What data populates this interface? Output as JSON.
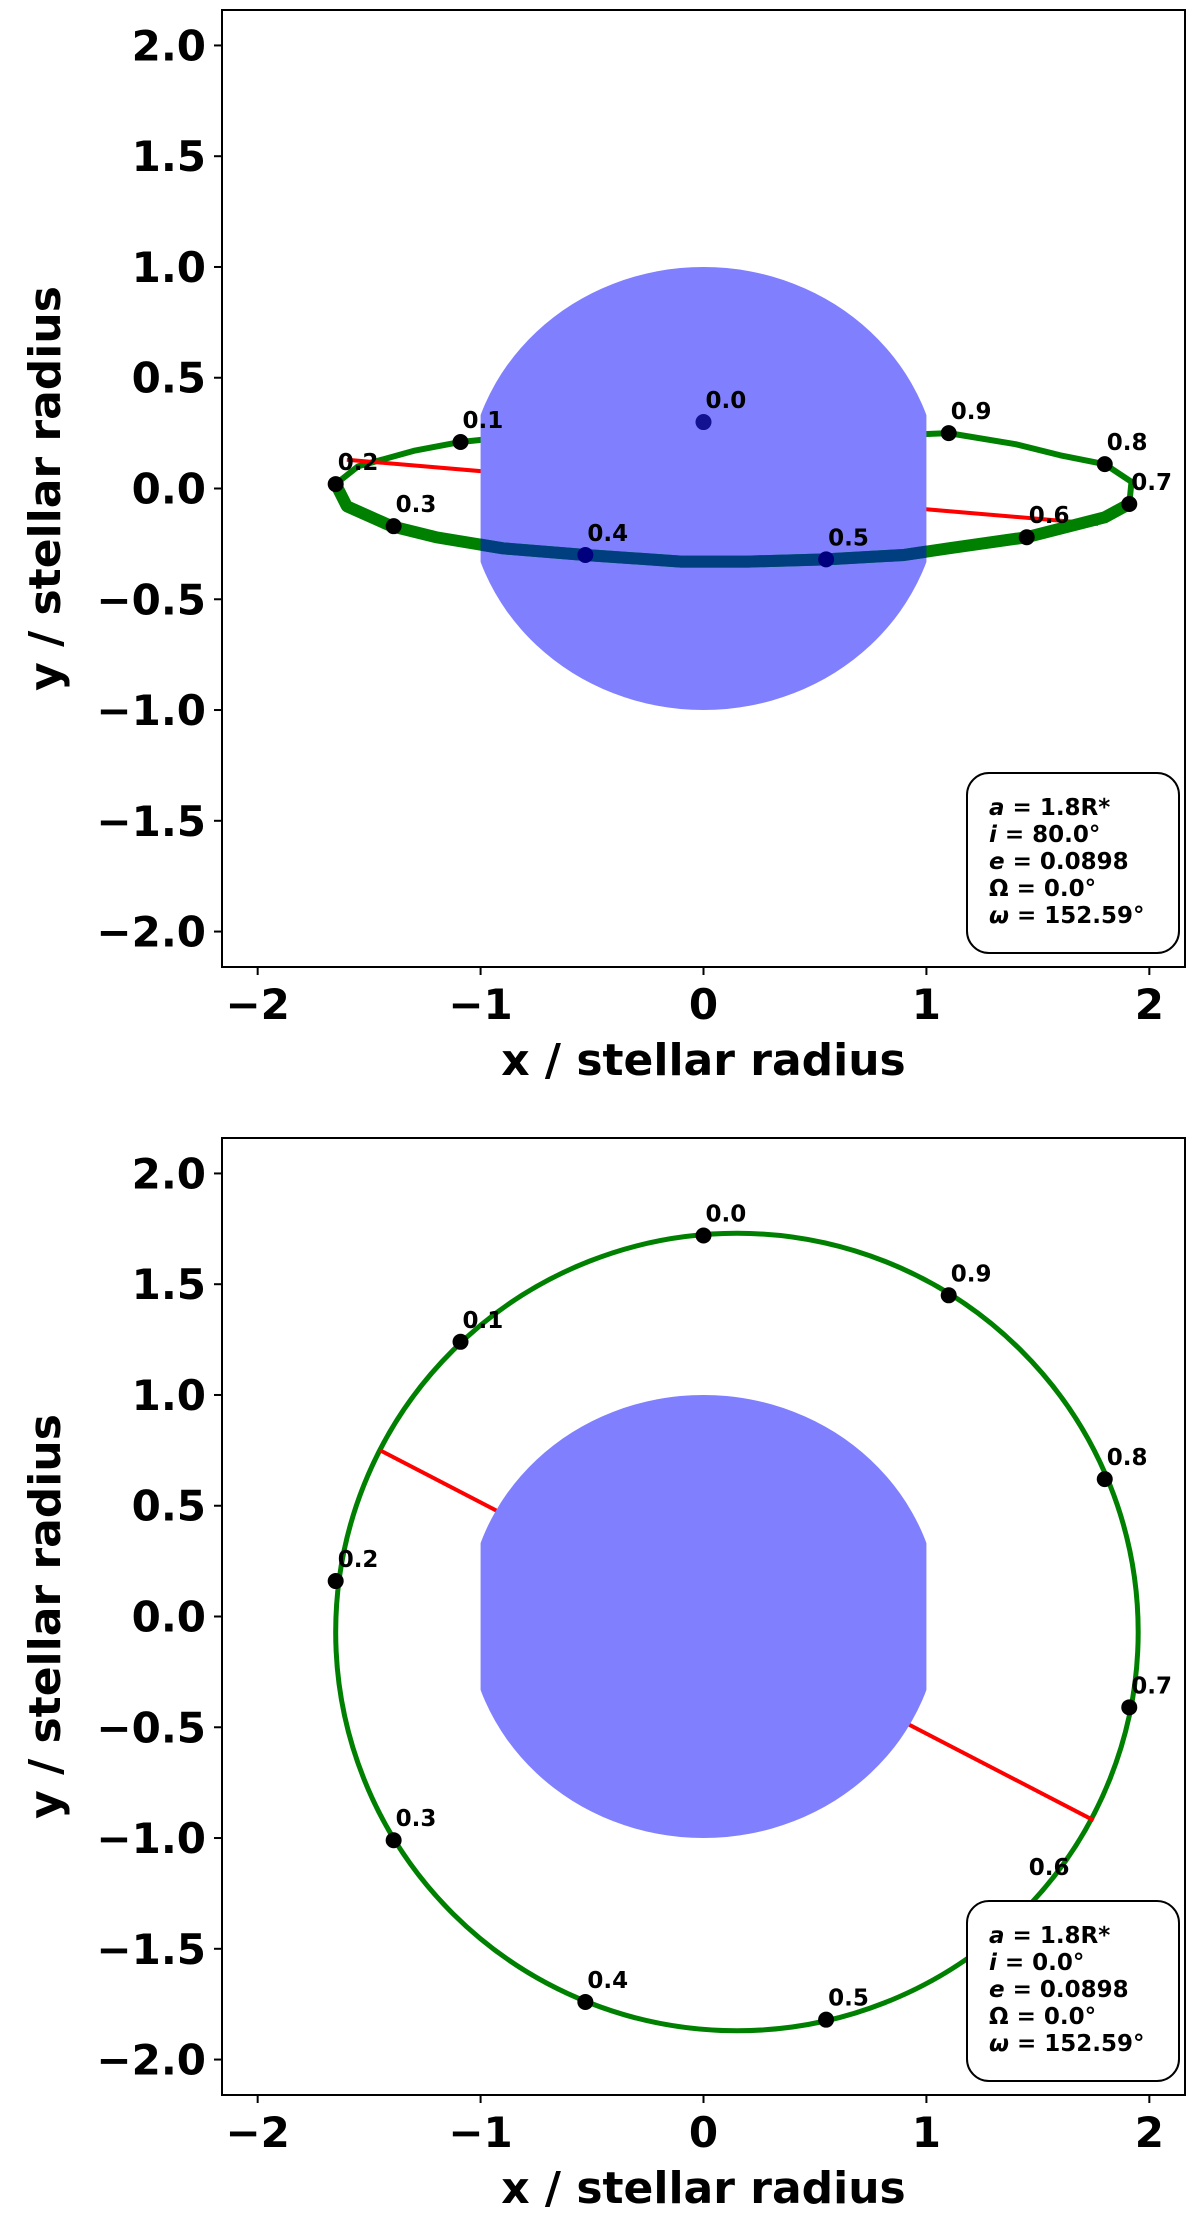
{
  "chart_data": [
    {
      "type": "scatter",
      "xlabel": "x / stellar radius",
      "ylabel": "y / stellar radius",
      "xlim": [
        -2.16,
        2.16
      ],
      "ylim": [
        -2.16,
        2.16
      ],
      "x_ticks": [
        -2,
        -1,
        0,
        1,
        2
      ],
      "x_tick_labels": [
        "−2",
        "−1",
        "0",
        "1",
        "2"
      ],
      "y_ticks": [
        2.0,
        1.5,
        1.0,
        0.5,
        0.0,
        -0.5,
        -1.0,
        -1.5,
        -2.0
      ],
      "y_tick_labels": [
        "2.0",
        "1.5",
        "1.0",
        "0.5",
        "0.0",
        "−0.5",
        "−1.0",
        "−1.5",
        "−2.0"
      ],
      "grid": false,
      "star": {
        "x": 0,
        "y": 0,
        "radius": 1.0,
        "color": "#8080ff"
      },
      "orbit": {
        "points": [
          [
            0.0,
            0.3
          ],
          [
            0.3,
            0.29
          ],
          [
            0.6,
            0.27
          ],
          [
            0.85,
            0.24
          ],
          [
            1.1,
            0.25
          ],
          [
            1.4,
            0.2
          ],
          [
            1.6,
            0.15
          ],
          [
            1.8,
            0.11
          ],
          [
            1.92,
            0.03
          ],
          [
            1.91,
            -0.07
          ],
          [
            1.8,
            -0.13
          ],
          [
            1.45,
            -0.22
          ],
          [
            1.1,
            -0.27
          ],
          [
            0.9,
            -0.3
          ],
          [
            0.55,
            -0.32
          ],
          [
            0.2,
            -0.33
          ],
          [
            -0.1,
            -0.33
          ],
          [
            -0.53,
            -0.3
          ],
          [
            -0.9,
            -0.27
          ],
          [
            -1.2,
            -0.22
          ],
          [
            -1.4,
            -0.17
          ],
          [
            -1.6,
            -0.08
          ],
          [
            -1.65,
            0.02
          ],
          [
            -1.55,
            0.1
          ],
          [
            -1.3,
            0.17
          ],
          [
            -1.09,
            0.21
          ],
          [
            -0.7,
            0.25
          ],
          [
            -0.3,
            0.28
          ],
          [
            0.0,
            0.3
          ]
        ],
        "front_start_index": 9,
        "front_end_index": 22,
        "color": "#008000"
      },
      "apsides_line": {
        "from": [
          -1.6,
          0.13
        ],
        "to": [
          1.77,
          -0.16
        ],
        "color": "#ff0000"
      },
      "phases": [
        {
          "label": "0.0",
          "x": 0.0,
          "y": 0.3,
          "behind_star": true
        },
        {
          "label": "0.1",
          "x": -1.09,
          "y": 0.21
        },
        {
          "label": "0.2",
          "x": -1.65,
          "y": 0.02
        },
        {
          "label": "0.3",
          "x": -1.39,
          "y": -0.17
        },
        {
          "label": "0.4",
          "x": -0.53,
          "y": -0.3,
          "behind_star": true
        },
        {
          "label": "0.5",
          "x": 0.55,
          "y": -0.32,
          "behind_star": true
        },
        {
          "label": "0.6",
          "x": 1.45,
          "y": -0.22
        },
        {
          "label": "0.7",
          "x": 1.91,
          "y": -0.07
        },
        {
          "label": "0.8",
          "x": 1.8,
          "y": 0.11
        },
        {
          "label": "0.9",
          "x": 1.1,
          "y": 0.25
        }
      ],
      "parameters": [
        "a = 1.8R*",
        "i = 80.0°",
        "e = 0.0898",
        "Ω = 0.0°",
        "ω = 152.59°"
      ],
      "legend_placement": "bottom-right"
    },
    {
      "type": "scatter",
      "xlabel": "x / stellar radius",
      "ylabel": "y / stellar radius",
      "xlim": [
        -2.16,
        2.16
      ],
      "ylim": [
        -2.16,
        2.16
      ],
      "x_ticks": [
        -2,
        -1,
        0,
        1,
        2
      ],
      "x_tick_labels": [
        "−2",
        "−1",
        "0",
        "1",
        "2"
      ],
      "y_ticks": [
        2.0,
        1.5,
        1.0,
        0.5,
        0.0,
        -0.5,
        -1.0,
        -1.5,
        -2.0
      ],
      "y_tick_labels": [
        "2.0",
        "1.5",
        "1.0",
        "0.5",
        "0.0",
        "−0.5",
        "−1.0",
        "−1.5",
        "−2.0"
      ],
      "grid": false,
      "star": {
        "x": 0,
        "y": 0,
        "radius": 1.0,
        "color": "#8080ff"
      },
      "orbit": {
        "center": [
          0.15,
          -0.07
        ],
        "rx": 1.8,
        "ry": 1.8,
        "color": "#008000"
      },
      "apsides_line": {
        "from": [
          -1.45,
          0.75
        ],
        "to": [
          1.75,
          -0.92
        ],
        "color": "#ff0000"
      },
      "phases": [
        {
          "label": "0.0",
          "x": 0.0,
          "y": 1.72
        },
        {
          "label": "0.1",
          "x": -1.09,
          "y": 1.24
        },
        {
          "label": "0.2",
          "x": -1.65,
          "y": 0.16
        },
        {
          "label": "0.3",
          "x": -1.39,
          "y": -1.01
        },
        {
          "label": "0.4",
          "x": -0.53,
          "y": -1.74
        },
        {
          "label": "0.5",
          "x": 0.55,
          "y": -1.82
        },
        {
          "label": "0.6",
          "x": 1.45,
          "y": -1.23,
          "hidden_marker": true
        },
        {
          "label": "0.7",
          "x": 1.91,
          "y": -0.41
        },
        {
          "label": "0.8",
          "x": 1.8,
          "y": 0.62
        },
        {
          "label": "0.9",
          "x": 1.1,
          "y": 1.45
        }
      ],
      "parameters": [
        "a = 1.8R*",
        "i = 0.0°",
        "e = 0.0898",
        "Ω = 0.0°",
        "ω = 152.59°"
      ],
      "legend_placement": "bottom-right"
    }
  ]
}
